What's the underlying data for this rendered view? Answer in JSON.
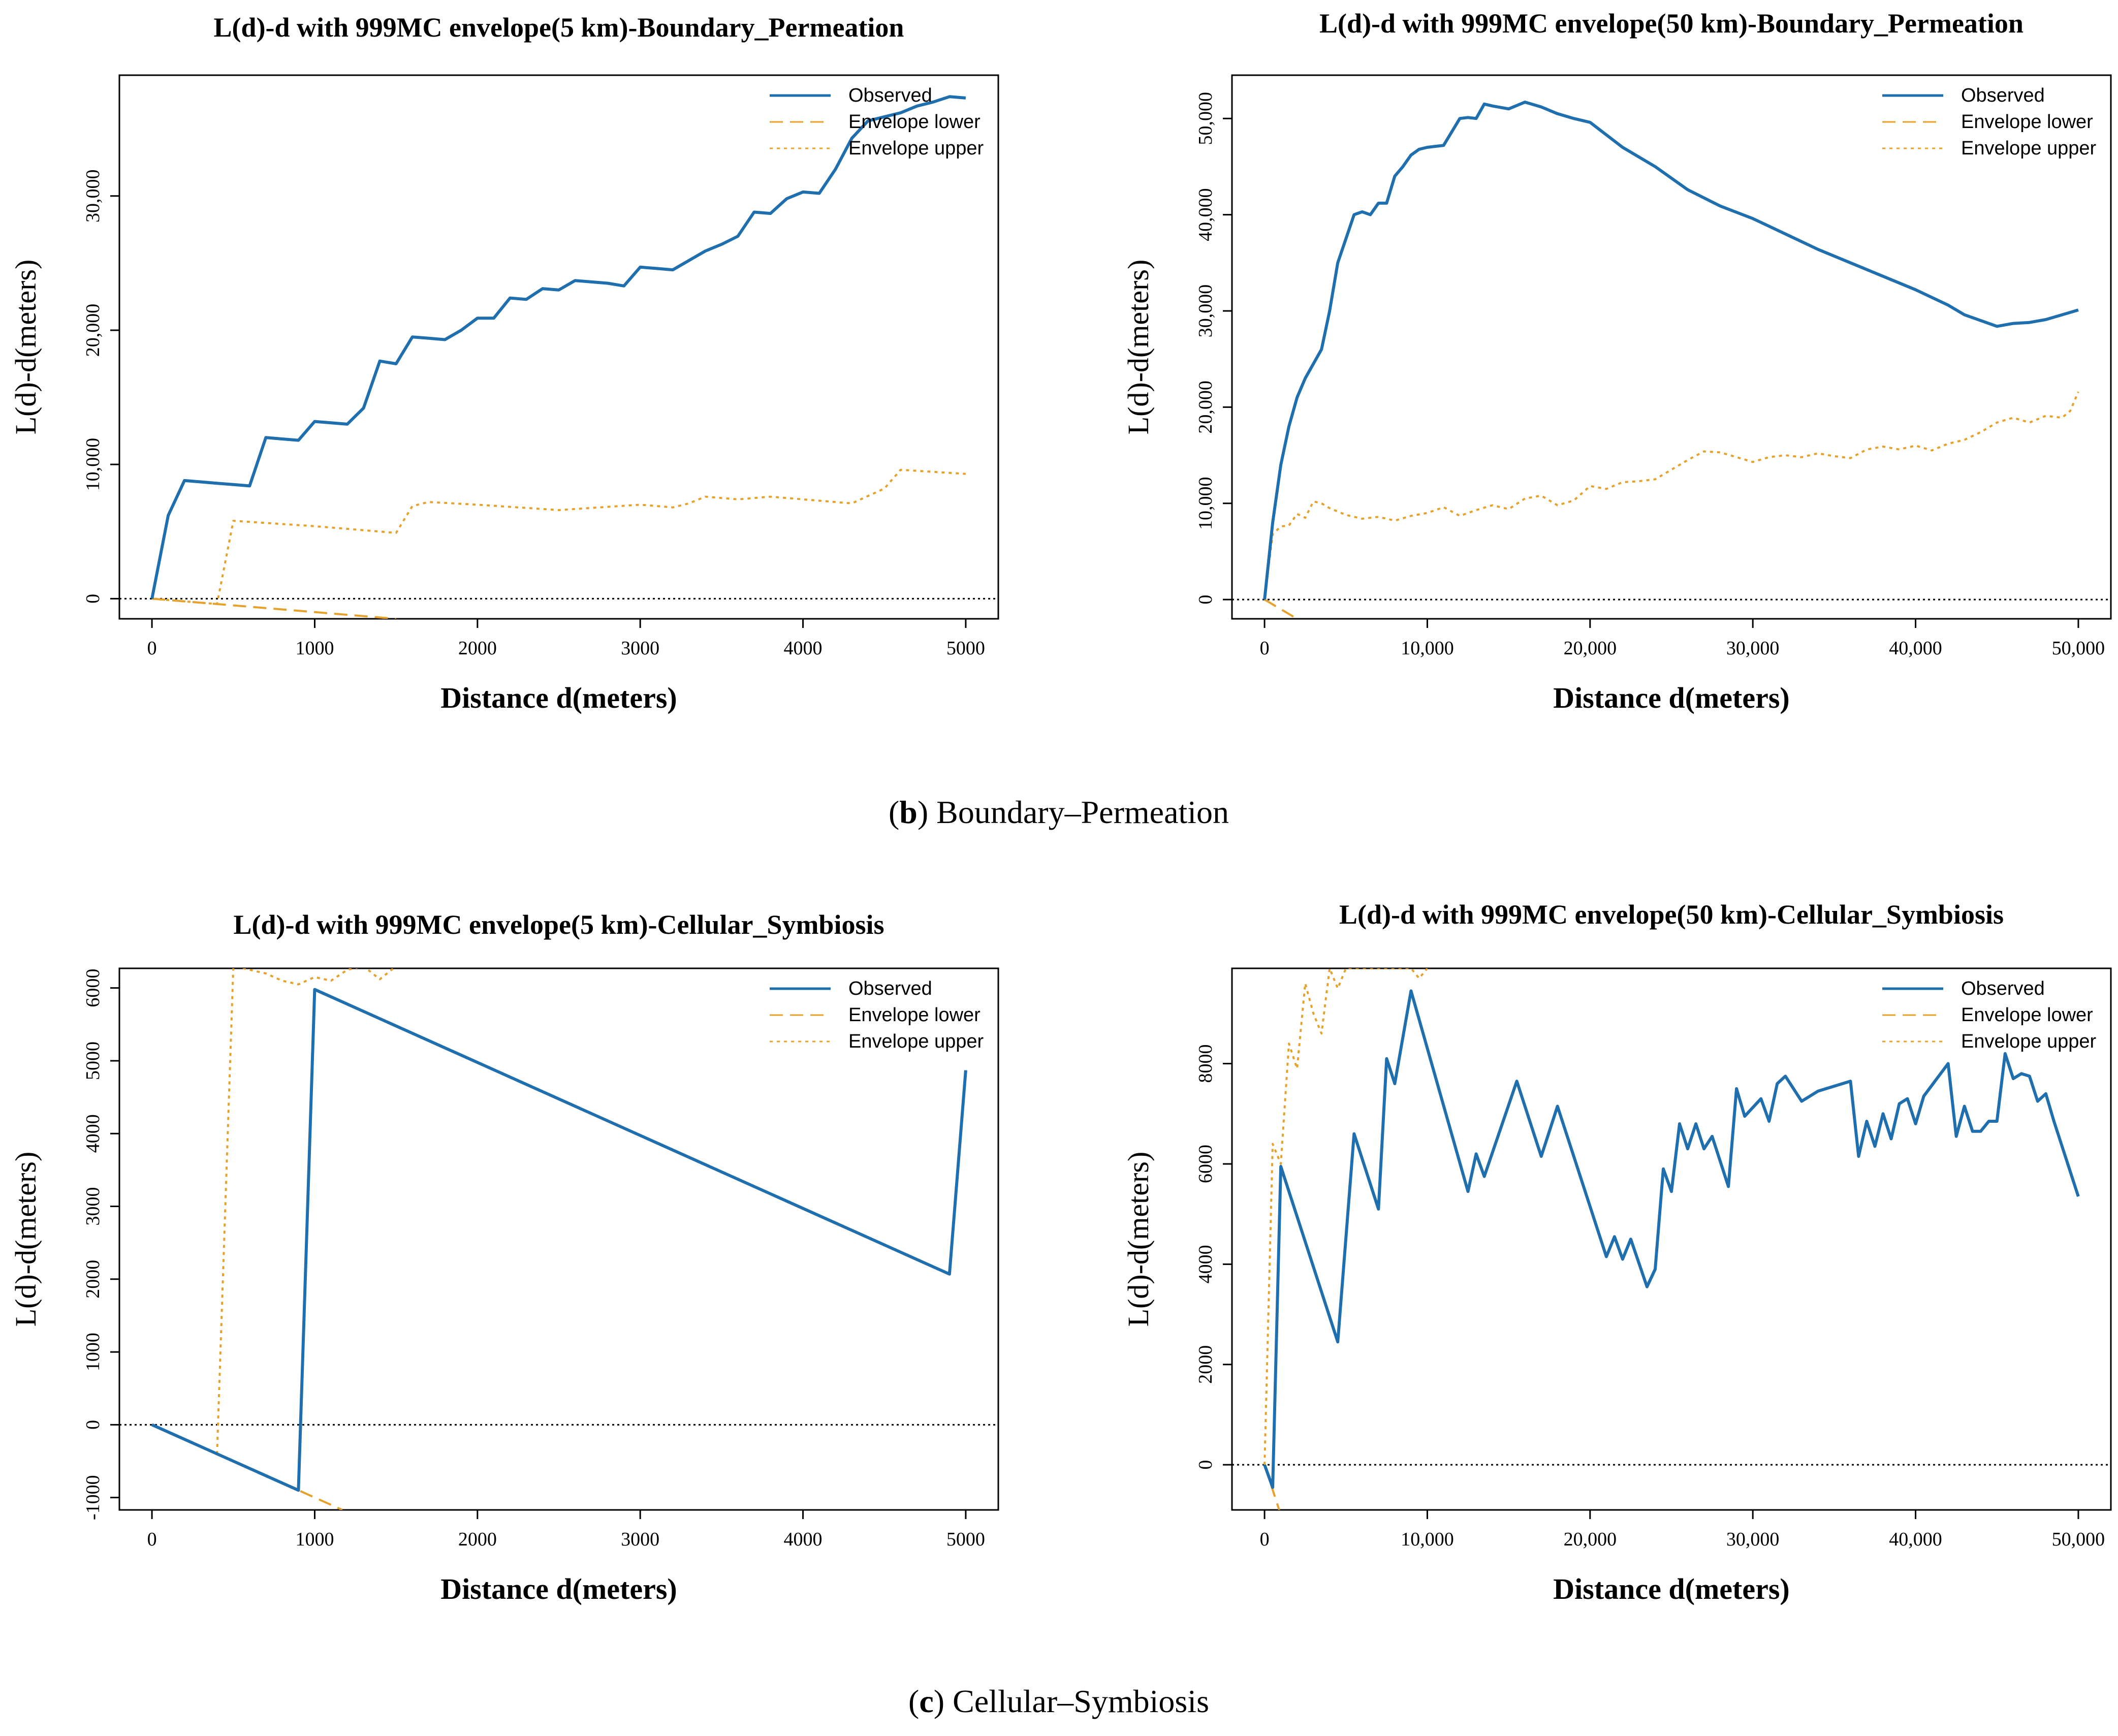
{
  "captions": [
    {
      "letter": "b",
      "text": " Boundary–Permeation",
      "paren_open": "(",
      "paren_close": ")"
    },
    {
      "letter": "c",
      "text": " Cellular–Symbiosis",
      "paren_open": "(",
      "paren_close": ")"
    }
  ],
  "colors": {
    "observed": "#1f6fae",
    "envelope": "#e6a12a",
    "zero_line": "#000000"
  },
  "chart_data": [
    {
      "type": "line",
      "title": "L(d)-d with 999MC envelope(5 km)-Boundary_Permeation",
      "xlabel": "Distance d(meters)",
      "ylabel": "L(d)-d(meters)",
      "xlim": [
        -200,
        5200
      ],
      "ylim": [
        -1500,
        39000
      ],
      "xticks": [
        0,
        1000,
        2000,
        3000,
        4000,
        5000
      ],
      "xtick_labels": [
        "0",
        "1000",
        "2000",
        "3000",
        "4000",
        "5000"
      ],
      "yticks": [
        0,
        10000,
        20000,
        30000
      ],
      "ytick_labels": [
        "0",
        "10,000",
        "20,000",
        "30,000"
      ],
      "legend": [
        "Observed",
        "Envelope lower",
        "Envelope upper"
      ],
      "legend_position": "top-right",
      "series": [
        {
          "name": "Observed",
          "style": "solid",
          "x": [
            0,
            100,
            200,
            300,
            400,
            500,
            600,
            700,
            800,
            900,
            1000,
            1100,
            1200,
            1300,
            1400,
            1500,
            1600,
            1700,
            1800,
            1900,
            2000,
            2100,
            2200,
            2300,
            2400,
            2500,
            2600,
            2700,
            2800,
            2900,
            3000,
            3100,
            3200,
            3300,
            3400,
            3500,
            3600,
            3700,
            3800,
            3900,
            4000,
            4100,
            4200,
            4300,
            4400,
            4500,
            4600,
            4700,
            4800,
            4900,
            5000
          ],
          "y": [
            0,
            6200,
            8800,
            8700,
            8600,
            8500,
            8400,
            12000,
            11900,
            11800,
            13200,
            13100,
            13000,
            14200,
            17700,
            17500,
            19500,
            19400,
            19300,
            20000,
            20900,
            20900,
            22400,
            22300,
            23100,
            23000,
            23700,
            23600,
            23500,
            23300,
            24700,
            24600,
            24500,
            25200,
            25900,
            26400,
            27000,
            28800,
            28700,
            29800,
            30300,
            30200,
            32000,
            34300,
            35600,
            35900,
            36200,
            36700,
            37000,
            37400,
            37300
          ]
        },
        {
          "name": "Envelope lower",
          "style": "dashed",
          "x": [
            0,
            500,
            1000,
            1500
          ],
          "y": [
            0,
            -500,
            -1000,
            -1500
          ]
        },
        {
          "name": "Envelope upper",
          "style": "dotted",
          "x": [
            0,
            200,
            400,
            500,
            1000,
            1500,
            1600,
            1700,
            2000,
            2500,
            3000,
            3200,
            3300,
            3400,
            3600,
            3800,
            4000,
            4300,
            4500,
            4600,
            5000
          ],
          "y": [
            0,
            -200,
            -400,
            5800,
            5400,
            4900,
            6900,
            7200,
            7000,
            6600,
            7000,
            6800,
            7100,
            7600,
            7400,
            7600,
            7400,
            7100,
            8200,
            9600,
            9300
          ]
        }
      ]
    },
    {
      "type": "line",
      "title": "L(d)-d with 999MC envelope(50 km)-Boundary_Permeation",
      "xlabel": "Distance d(meters)",
      "ylabel": "L(d)-d(meters)",
      "xlim": [
        -2000,
        52000
      ],
      "ylim": [
        -2000,
        54500
      ],
      "xticks": [
        0,
        10000,
        20000,
        30000,
        40000,
        50000
      ],
      "xtick_labels": [
        "0",
        "10,000",
        "20,000",
        "30,000",
        "40,000",
        "50,000"
      ],
      "yticks": [
        0,
        10000,
        20000,
        30000,
        40000,
        50000
      ],
      "ytick_labels": [
        "0",
        "10,000",
        "20,000",
        "30,000",
        "40,000",
        "50,000"
      ],
      "legend": [
        "Observed",
        "Envelope lower",
        "Envelope upper"
      ],
      "legend_position": "top-right",
      "series": [
        {
          "name": "Observed",
          "style": "solid",
          "x": [
            0,
            500,
            1000,
            1500,
            2000,
            2500,
            3000,
            3500,
            4000,
            4500,
            5000,
            5500,
            6000,
            6500,
            7000,
            7500,
            8000,
            8500,
            9000,
            9500,
            10000,
            11000,
            12000,
            12500,
            13000,
            13500,
            14000,
            15000,
            16000,
            17000,
            18000,
            19000,
            20000,
            22000,
            24000,
            26000,
            28000,
            30000,
            32000,
            34000,
            36000,
            38000,
            40000,
            42000,
            43000,
            44000,
            45000,
            46000,
            47000,
            48000,
            49000,
            50000
          ],
          "y": [
            0,
            8000,
            14000,
            18000,
            21000,
            23000,
            24500,
            26000,
            30000,
            35000,
            37500,
            40000,
            40300,
            40000,
            41200,
            41200,
            44000,
            45000,
            46200,
            46800,
            47000,
            47200,
            50000,
            50100,
            50000,
            51500,
            51300,
            51000,
            51700,
            51200,
            50500,
            50000,
            49600,
            47000,
            45000,
            42600,
            40900,
            39600,
            38000,
            36400,
            35000,
            33600,
            32200,
            30600,
            29600,
            29000,
            28400,
            28700,
            28800,
            29100,
            29600,
            30100
          ]
        },
        {
          "name": "Envelope lower",
          "style": "dashed",
          "x": [
            0,
            1000,
            2000
          ],
          "y": [
            0,
            -1000,
            -2000
          ]
        },
        {
          "name": "Envelope upper",
          "style": "dotted",
          "x": [
            0,
            500,
            1000,
            1500,
            2000,
            2500,
            3000,
            3500,
            4000,
            5000,
            6000,
            7000,
            8000,
            9000,
            10000,
            11000,
            12000,
            13000,
            14000,
            15000,
            16000,
            17000,
            18000,
            19000,
            20000,
            21000,
            22000,
            23000,
            24000,
            25000,
            26000,
            27000,
            28000,
            29000,
            30000,
            31000,
            32000,
            33000,
            34000,
            35000,
            36000,
            37000,
            38000,
            39000,
            40000,
            41000,
            42000,
            43000,
            44000,
            45000,
            46000,
            47000,
            48000,
            49000,
            49500,
            50000
          ],
          "y": [
            0,
            6800,
            7600,
            7700,
            8900,
            8500,
            10200,
            10000,
            9500,
            8800,
            8400,
            8600,
            8200,
            8700,
            9000,
            9600,
            8700,
            9300,
            9800,
            9400,
            10500,
            10800,
            9800,
            10300,
            11800,
            11500,
            12200,
            12300,
            12500,
            13500,
            14500,
            15400,
            15300,
            14800,
            14300,
            14800,
            15000,
            14800,
            15200,
            14900,
            14700,
            15600,
            15900,
            15600,
            16000,
            15500,
            16200,
            16600,
            17400,
            18400,
            18900,
            18400,
            19100,
            18900,
            19600,
            21600
          ]
        }
      ]
    },
    {
      "type": "line",
      "title": "L(d)-d with 999MC envelope(5 km)-Cellular_Symbiosis",
      "xlabel": "Distance d(meters)",
      "ylabel": "L(d)-d(meters)",
      "xlim": [
        -200,
        5200
      ],
      "ylim": [
        -1170,
        6270
      ],
      "xticks": [
        0,
        1000,
        2000,
        3000,
        4000,
        5000
      ],
      "xtick_labels": [
        "0",
        "1000",
        "2000",
        "3000",
        "4000",
        "5000"
      ],
      "yticks": [
        -1000,
        0,
        1000,
        2000,
        3000,
        4000,
        5000,
        6000
      ],
      "ytick_labels": [
        "-1000",
        "0",
        "1000",
        "2000",
        "3000",
        "4000",
        "5000",
        "6000"
      ],
      "legend": [
        "Observed",
        "Envelope lower",
        "Envelope upper"
      ],
      "legend_position": "top-right",
      "series": [
        {
          "name": "Observed",
          "style": "solid",
          "x": [
            0,
            900,
            1000,
            4900,
            5000
          ],
          "y": [
            0,
            -900,
            5980,
            2070,
            4870
          ]
        },
        {
          "name": "Envelope lower",
          "style": "dashed",
          "x": [
            0,
            900,
            1000,
            1170
          ],
          "y": [
            0,
            -900,
            -1000,
            -1170
          ]
        },
        {
          "name": "Envelope upper",
          "style": "dotted",
          "x": [
            0,
            400,
            500,
            600,
            700,
            800,
            900,
            1000,
            1100,
            1200,
            1300,
            1400,
            1500
          ],
          "y": [
            0,
            -400,
            6300,
            6250,
            6200,
            6100,
            6050,
            6150,
            6100,
            6250,
            6300,
            6120,
            6300
          ]
        }
      ]
    },
    {
      "type": "line",
      "title": "L(d)-d with 999MC envelope(50 km)-Cellular_Symbiosis",
      "xlabel": "Distance d(meters)",
      "ylabel": "L(d)-d(meters)",
      "xlim": [
        -2000,
        52000
      ],
      "ylim": [
        -900,
        9900
      ],
      "xticks": [
        0,
        10000,
        20000,
        30000,
        40000,
        50000
      ],
      "xtick_labels": [
        "0",
        "10,000",
        "20,000",
        "30,000",
        "40,000",
        "50,000"
      ],
      "yticks": [
        0,
        2000,
        4000,
        6000,
        8000
      ],
      "ytick_labels": [
        "0",
        "2000",
        "4000",
        "6000",
        "8000"
      ],
      "legend": [
        "Observed",
        "Envelope lower",
        "Envelope upper"
      ],
      "legend_position": "top-right",
      "series": [
        {
          "name": "Observed",
          "style": "solid",
          "x": [
            0,
            500,
            1000,
            4500,
            5500,
            7000,
            7500,
            8000,
            9000,
            12500,
            13000,
            13500,
            15500,
            17000,
            18000,
            21000,
            21500,
            22000,
            22500,
            23500,
            24000,
            24500,
            25000,
            25500,
            26000,
            26500,
            27000,
            27500,
            28500,
            29000,
            29500,
            30500,
            31000,
            31500,
            32000,
            33000,
            34000,
            36000,
            36500,
            37000,
            37500,
            38000,
            38500,
            39000,
            39500,
            40000,
            40500,
            42000,
            42500,
            43000,
            43500,
            44000,
            44500,
            45000,
            45500,
            46000,
            46500,
            47000,
            47500,
            48000,
            48500,
            50000
          ],
          "y": [
            0,
            -450,
            5950,
            2450,
            6600,
            5100,
            8100,
            7600,
            9450,
            5450,
            6200,
            5750,
            7650,
            6150,
            7150,
            4150,
            4550,
            4100,
            4500,
            3550,
            3900,
            5900,
            5450,
            6800,
            6300,
            6800,
            6300,
            6550,
            5550,
            7500,
            6950,
            7300,
            6850,
            7600,
            7750,
            7250,
            7450,
            7650,
            6150,
            6850,
            6350,
            7000,
            6500,
            7200,
            7300,
            6800,
            7350,
            8000,
            6550,
            7150,
            6650,
            6650,
            6850,
            6850,
            8200,
            7700,
            7800,
            7750,
            7250,
            7400,
            6850,
            5350
          ]
        },
        {
          "name": "Envelope lower",
          "style": "dashed",
          "x": [
            0,
            500,
            900
          ],
          "y": [
            0,
            -500,
            -900
          ]
        },
        {
          "name": "Envelope upper",
          "style": "dotted",
          "x": [
            0,
            500,
            1000,
            1500,
            2000,
            2500,
            3000,
            3500,
            4000,
            4500,
            5000,
            9000,
            9500,
            10000
          ],
          "y": [
            0,
            6400,
            6000,
            8400,
            7900,
            9600,
            9000,
            8600,
            9900,
            9500,
            9900,
            9900,
            9700,
            9900
          ]
        }
      ]
    }
  ]
}
